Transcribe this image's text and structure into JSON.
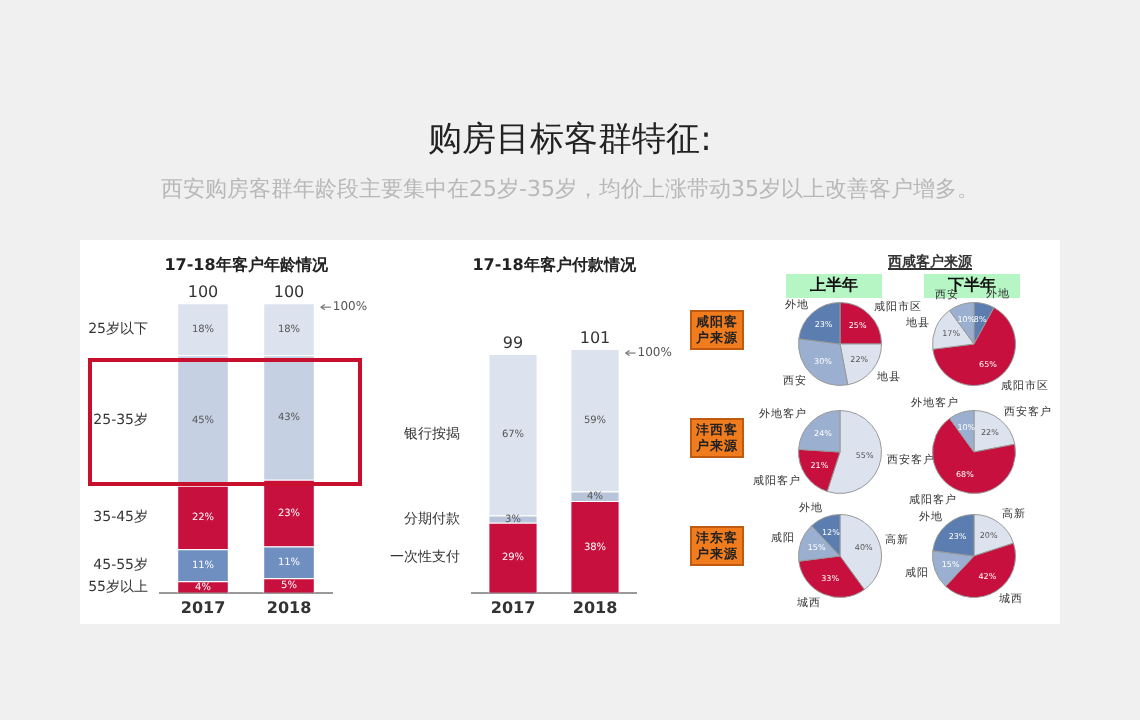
{
  "chart_data": [
    {
      "type": "other",
      "title": "购房目标客群特征:",
      "subtitle": "西安购房客群年龄段主要集中在25岁-35岁，均价上涨带动35岁以上改善客户增多。"
    },
    {
      "type": "bar",
      "title": "17-18年客户年龄情况",
      "categories": [
        "2017",
        "2018"
      ],
      "stacked": true,
      "legend": false,
      "grid": false,
      "totals": [
        "100",
        "100"
      ],
      "annotations": [
        "100%"
      ],
      "series": [
        {
          "name": "55岁以上",
          "color": "#c8103e",
          "values": [
            4,
            5
          ],
          "value_labels": [
            "4%",
            "5%"
          ]
        },
        {
          "name": "45-55岁",
          "color": "#6f8fc0",
          "values": [
            11,
            11
          ],
          "value_labels": [
            "11%",
            "11%"
          ]
        },
        {
          "name": "35-45岁",
          "color": "#c8103e",
          "values": [
            22,
            23
          ],
          "value_labels": [
            "22%",
            "23%"
          ]
        },
        {
          "name": "25-35岁",
          "color": "#c5d0e3",
          "values": [
            45,
            43
          ],
          "value_labels": [
            "45%",
            "43%"
          ]
        },
        {
          "name": "25岁以下",
          "color": "#dde3ee",
          "values": [
            18,
            18
          ],
          "value_labels": [
            "18%",
            "18%"
          ]
        }
      ]
    },
    {
      "type": "bar",
      "title": "17-18年客户付款情况",
      "categories": [
        "2017",
        "2018"
      ],
      "stacked": true,
      "legend": false,
      "grid": false,
      "totals": [
        "99",
        "101"
      ],
      "annotations": [
        "100%"
      ],
      "series": [
        {
          "name": "一次性支付",
          "color": "#c8103e",
          "values": [
            29,
            38
          ],
          "value_labels": [
            "29%",
            "38%"
          ]
        },
        {
          "name": "分期付款",
          "color": "#b8c4da",
          "values": [
            3,
            4
          ],
          "value_labels": [
            "3%",
            "4%"
          ]
        },
        {
          "name": "银行按揭",
          "color": "#dde3ee",
          "values": [
            67,
            59
          ],
          "value_labels": [
            "67%",
            "59%"
          ]
        }
      ]
    },
    {
      "type": "other",
      "title": "西咸客户来源",
      "annotations": [
        "上半年",
        "下半年",
        "咸阳客户来源",
        "沣西客户来源",
        "沣东客户来源"
      ]
    },
    {
      "type": "pie",
      "categories": [
        "咸阳市区",
        "地县",
        "西安",
        "外地"
      ],
      "values": [
        25,
        22,
        30,
        23
      ],
      "colors": [
        "#c8103e",
        "#dde3ee",
        "#9bb0d0",
        "#5b7db0"
      ],
      "value_labels": [
        "25%",
        "22%",
        "30%",
        "23%"
      ]
    },
    {
      "type": "pie",
      "categories": [
        "外地",
        "咸阳市区",
        "地县",
        "西安"
      ],
      "values": [
        8,
        65,
        17,
        10
      ],
      "colors": [
        "#5b7db0",
        "#c8103e",
        "#dde3ee",
        "#9bb0d0"
      ],
      "value_labels": [
        "8%",
        "65%",
        "17%",
        "10%"
      ]
    },
    {
      "type": "pie",
      "categories": [
        "西安客户",
        "咸阳客户",
        "外地客户"
      ],
      "values": [
        55,
        21,
        24
      ],
      "colors": [
        "#dde3ee",
        "#c8103e",
        "#9bb0d0"
      ],
      "value_labels": [
        "55%",
        "21%",
        "24%"
      ]
    },
    {
      "type": "pie",
      "categories": [
        "西安客户",
        "咸阳客户",
        "外地客户"
      ],
      "values": [
        22,
        68,
        10
      ],
      "colors": [
        "#dde3ee",
        "#c8103e",
        "#9bb0d0"
      ],
      "value_labels": [
        "22%",
        "68%",
        "10%"
      ]
    },
    {
      "type": "pie",
      "categories": [
        "高新",
        "城西",
        "咸阳",
        "外地"
      ],
      "values": [
        40,
        33,
        15,
        12
      ],
      "colors": [
        "#dde3ee",
        "#c8103e",
        "#9bb0d0",
        "#5b7db0"
      ],
      "value_labels": [
        "40%",
        "33%",
        "15%",
        "12%"
      ]
    },
    {
      "type": "pie",
      "categories": [
        "高新",
        "城西",
        "咸阳",
        "外地"
      ],
      "values": [
        20,
        42,
        15,
        23
      ],
      "colors": [
        "#dde3ee",
        "#c8103e",
        "#9bb0d0",
        "#5b7db0"
      ],
      "value_labels": [
        "20%",
        "42%",
        "15%",
        "23%"
      ]
    }
  ]
}
